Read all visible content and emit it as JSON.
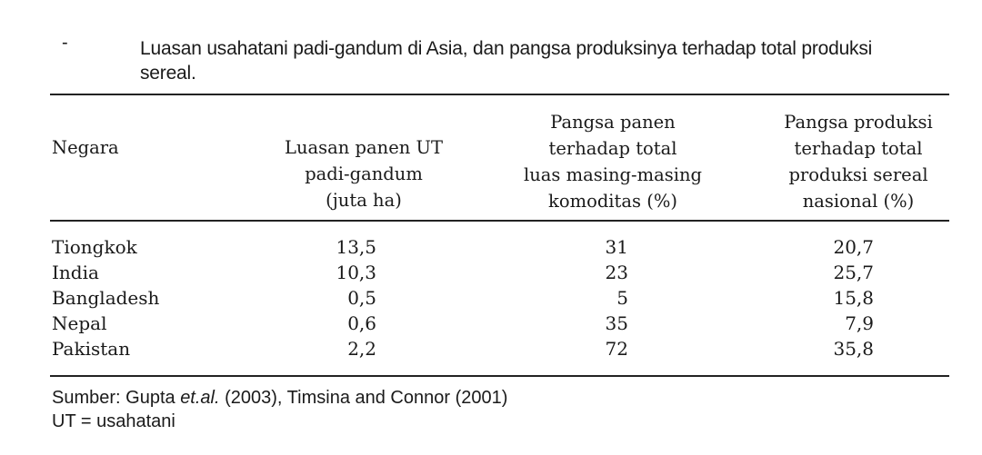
{
  "caption": {
    "bullet": "-",
    "line1": "Luasan usahatani padi-gandum di Asia, dan pangsa produksinya terhadap total produksi",
    "line2": "sereal."
  },
  "table": {
    "headers": {
      "negara": [
        "Negara"
      ],
      "luasan": [
        "Luasan panen UT",
        "padi-gandum",
        "(juta ha)"
      ],
      "pangsa_panen": [
        "Pangsa panen",
        "terhadap total",
        "luas masing-masing",
        "komoditas (%)"
      ],
      "pangsa_produksi": [
        "Pangsa produksi",
        "terhadap total",
        "produksi sereal",
        "nasional (%)"
      ]
    },
    "rows": [
      {
        "negara": "Tiongkok",
        "luasan": "13,5",
        "pangsa_panen": "31",
        "pangsa_produksi": "20,7"
      },
      {
        "negara": "India",
        "luasan": "10,3",
        "pangsa_panen": "23",
        "pangsa_produksi": "25,7"
      },
      {
        "negara": "Bangladesh",
        "luasan": "0,5",
        "pangsa_panen": "5",
        "pangsa_produksi": "15,8"
      },
      {
        "negara": "Nepal",
        "luasan": "0,6",
        "pangsa_panen": "35",
        "pangsa_produksi": "7,9"
      },
      {
        "negara": "Pakistan",
        "luasan": "2,2",
        "pangsa_panen": "72",
        "pangsa_produksi": "35,8"
      }
    ]
  },
  "footer": {
    "source_prefix": "Sumber: Gupta ",
    "source_etal": "et.al.",
    "source_rest": " (2003), Timsina and Connor (2001)",
    "note": "UT = usahatani"
  }
}
